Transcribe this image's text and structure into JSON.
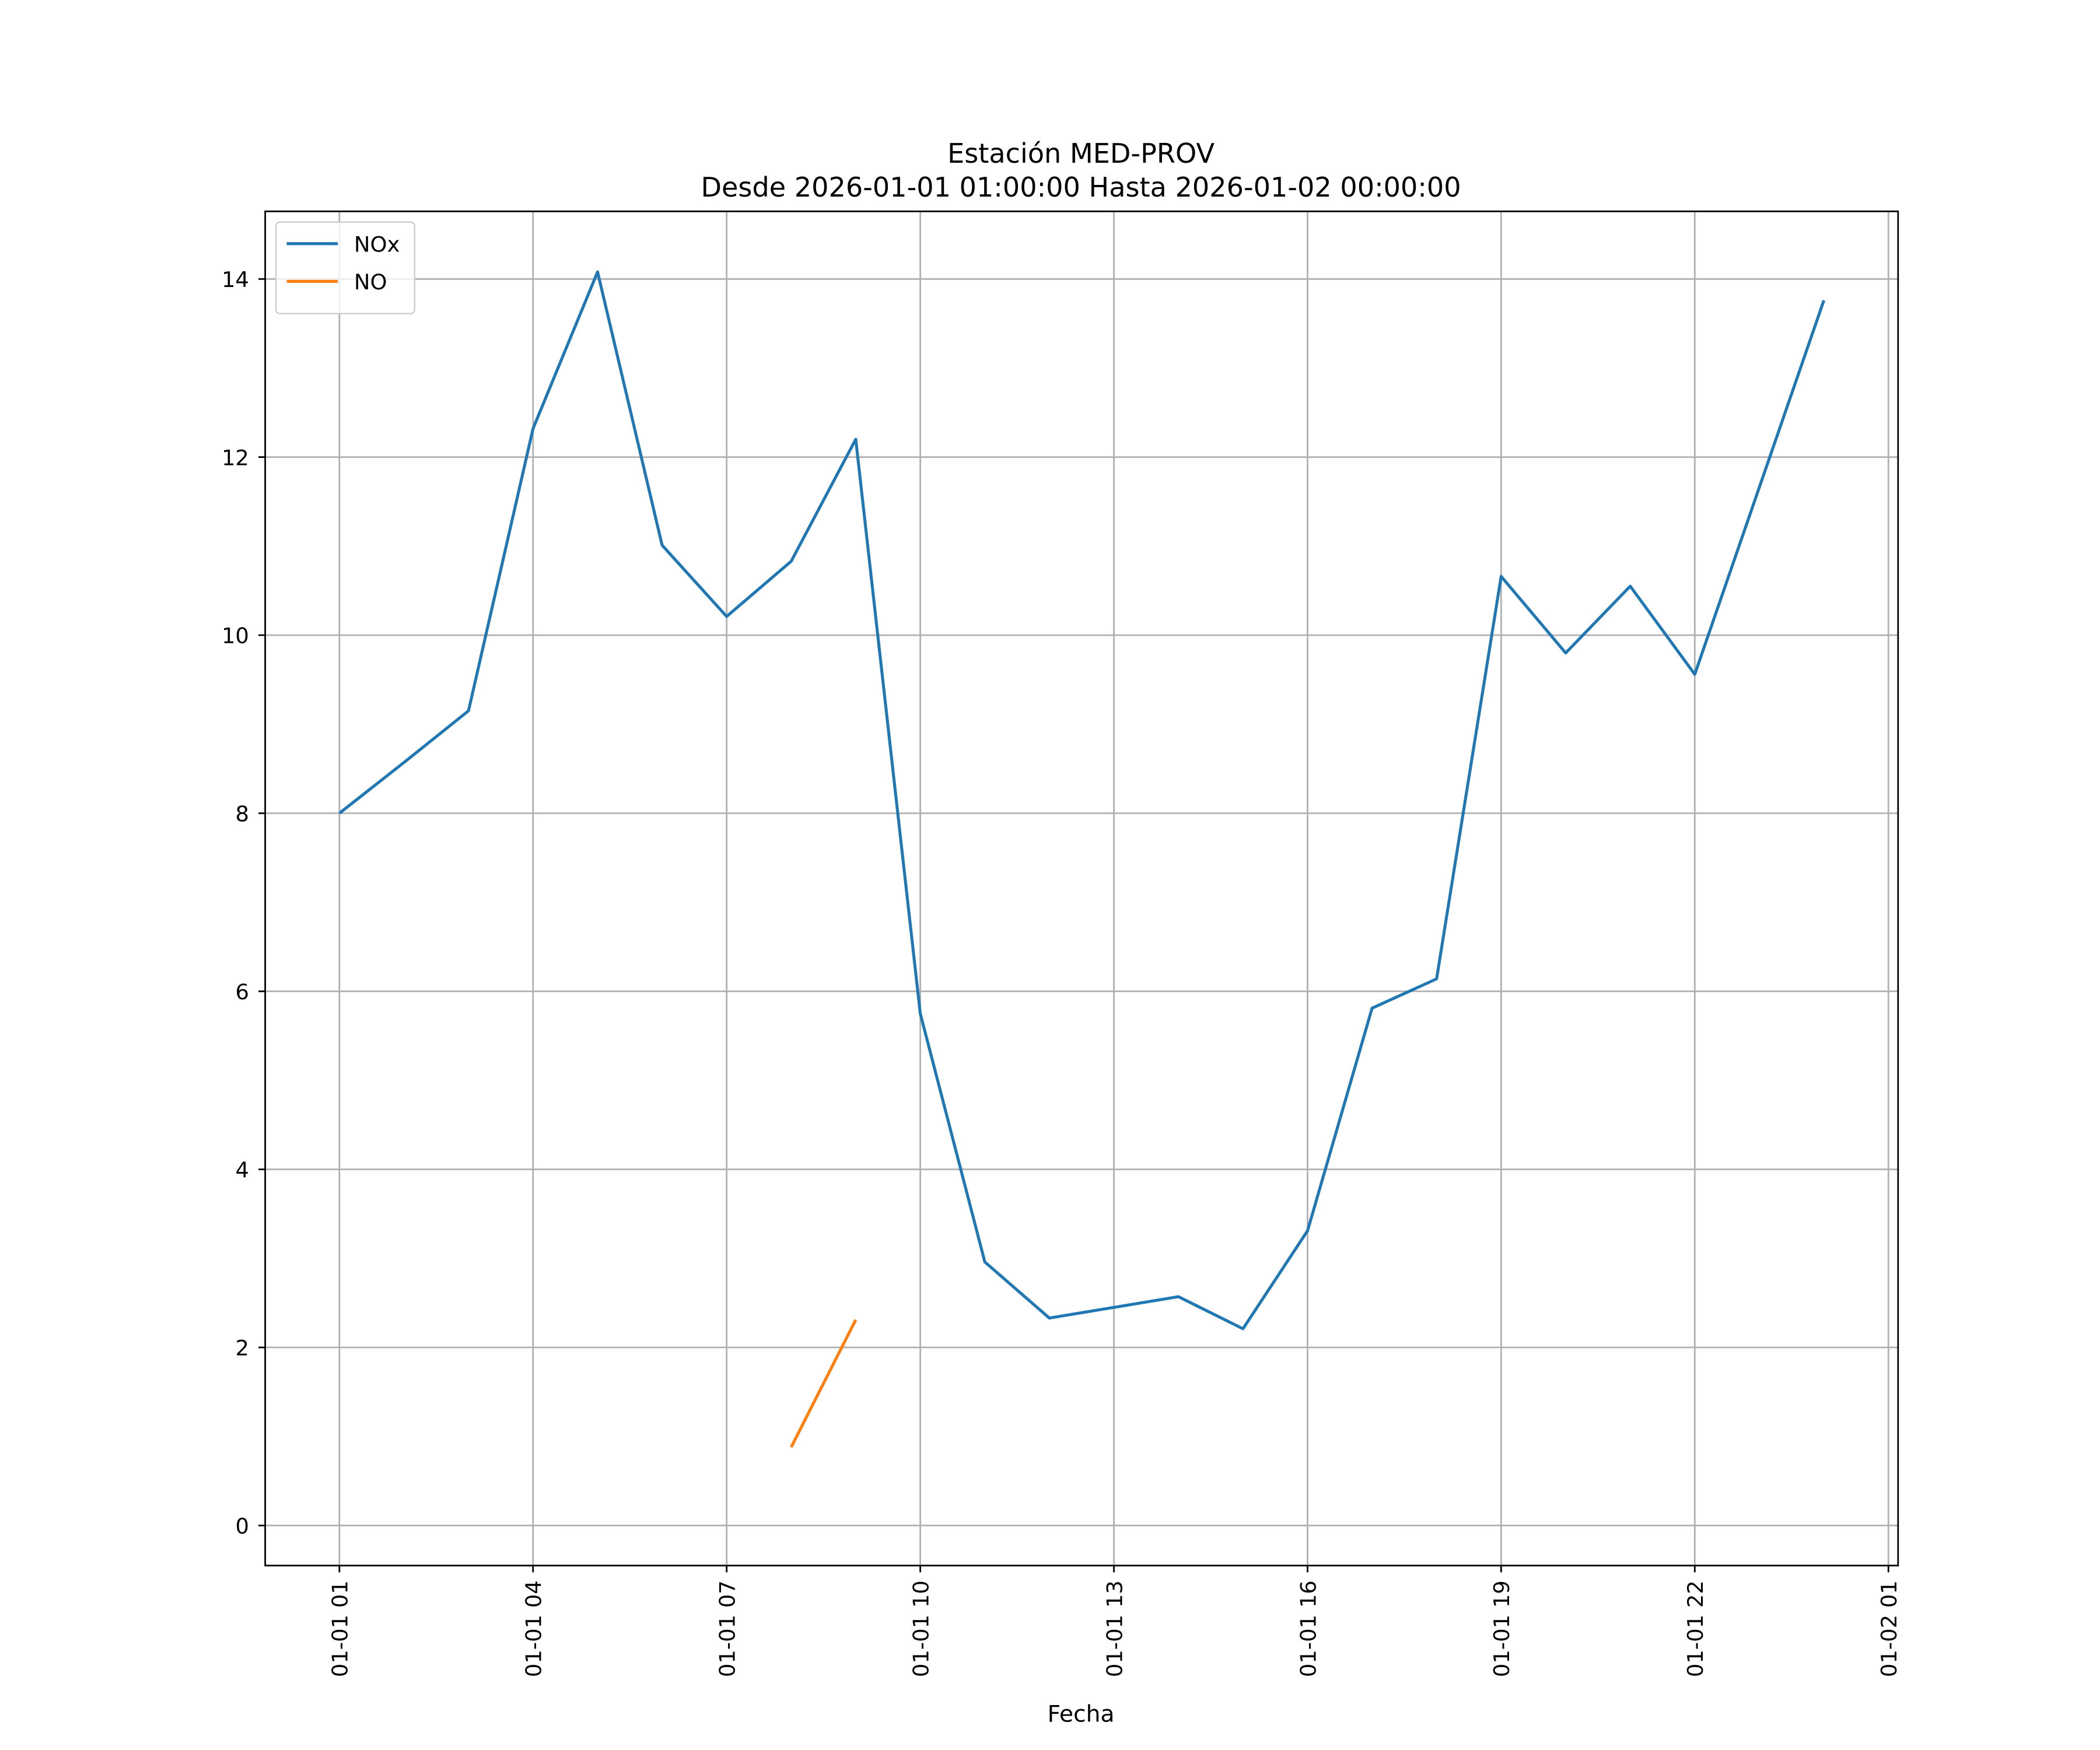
{
  "chart_data": {
    "type": "line",
    "title": "Estación MED-PROV",
    "subtitle": "Desde 2026-01-01 01:00:00 Hasta 2026-01-02 00:00:00",
    "x_label": "Fecha",
    "x": [
      "01-01 01",
      "01-01 02",
      "01-01 03",
      "01-01 04",
      "01-01 05",
      "01-01 06",
      "01-01 07",
      "01-01 08",
      "01-01 09",
      "01-01 10",
      "01-01 11",
      "01-01 12",
      "01-01 13",
      "01-01 14",
      "01-01 15",
      "01-01 16",
      "01-01 17",
      "01-01 18",
      "01-01 19",
      "01-01 20",
      "01-01 21",
      "01-01 22",
      "01-01 23",
      "01-02 00"
    ],
    "series": [
      {
        "name": "NOx",
        "color": "#1f77b4",
        "values": [
          8.0,
          8.57,
          9.15,
          12.32,
          14.08,
          11.01,
          10.21,
          10.83,
          12.2,
          5.75,
          2.96,
          2.33,
          2.45,
          2.57,
          2.21,
          3.31,
          5.81,
          6.14,
          10.66,
          9.8,
          10.55,
          9.56,
          11.66,
          13.76
        ]
      },
      {
        "name": "NO",
        "color": "#ff7f0e",
        "values": [
          null,
          null,
          null,
          null,
          null,
          null,
          null,
          0.88,
          2.31,
          null,
          null,
          null,
          null,
          null,
          null,
          null,
          null,
          null,
          null,
          null,
          null,
          null,
          null,
          null
        ]
      }
    ],
    "xlim": [
      "12-31 23:51",
      "01-02 01:09"
    ],
    "xticks": [
      "01-01 01",
      "01-01 04",
      "01-01 07",
      "01-01 10",
      "01-01 13",
      "01-01 16",
      "01-01 19",
      "01-01 22",
      "01-02 01"
    ],
    "ylim": [
      -0.45,
      14.76
    ],
    "yticks": [
      0,
      2,
      4,
      6,
      8,
      10,
      12,
      14
    ],
    "grid": true,
    "legend": "upper left"
  }
}
